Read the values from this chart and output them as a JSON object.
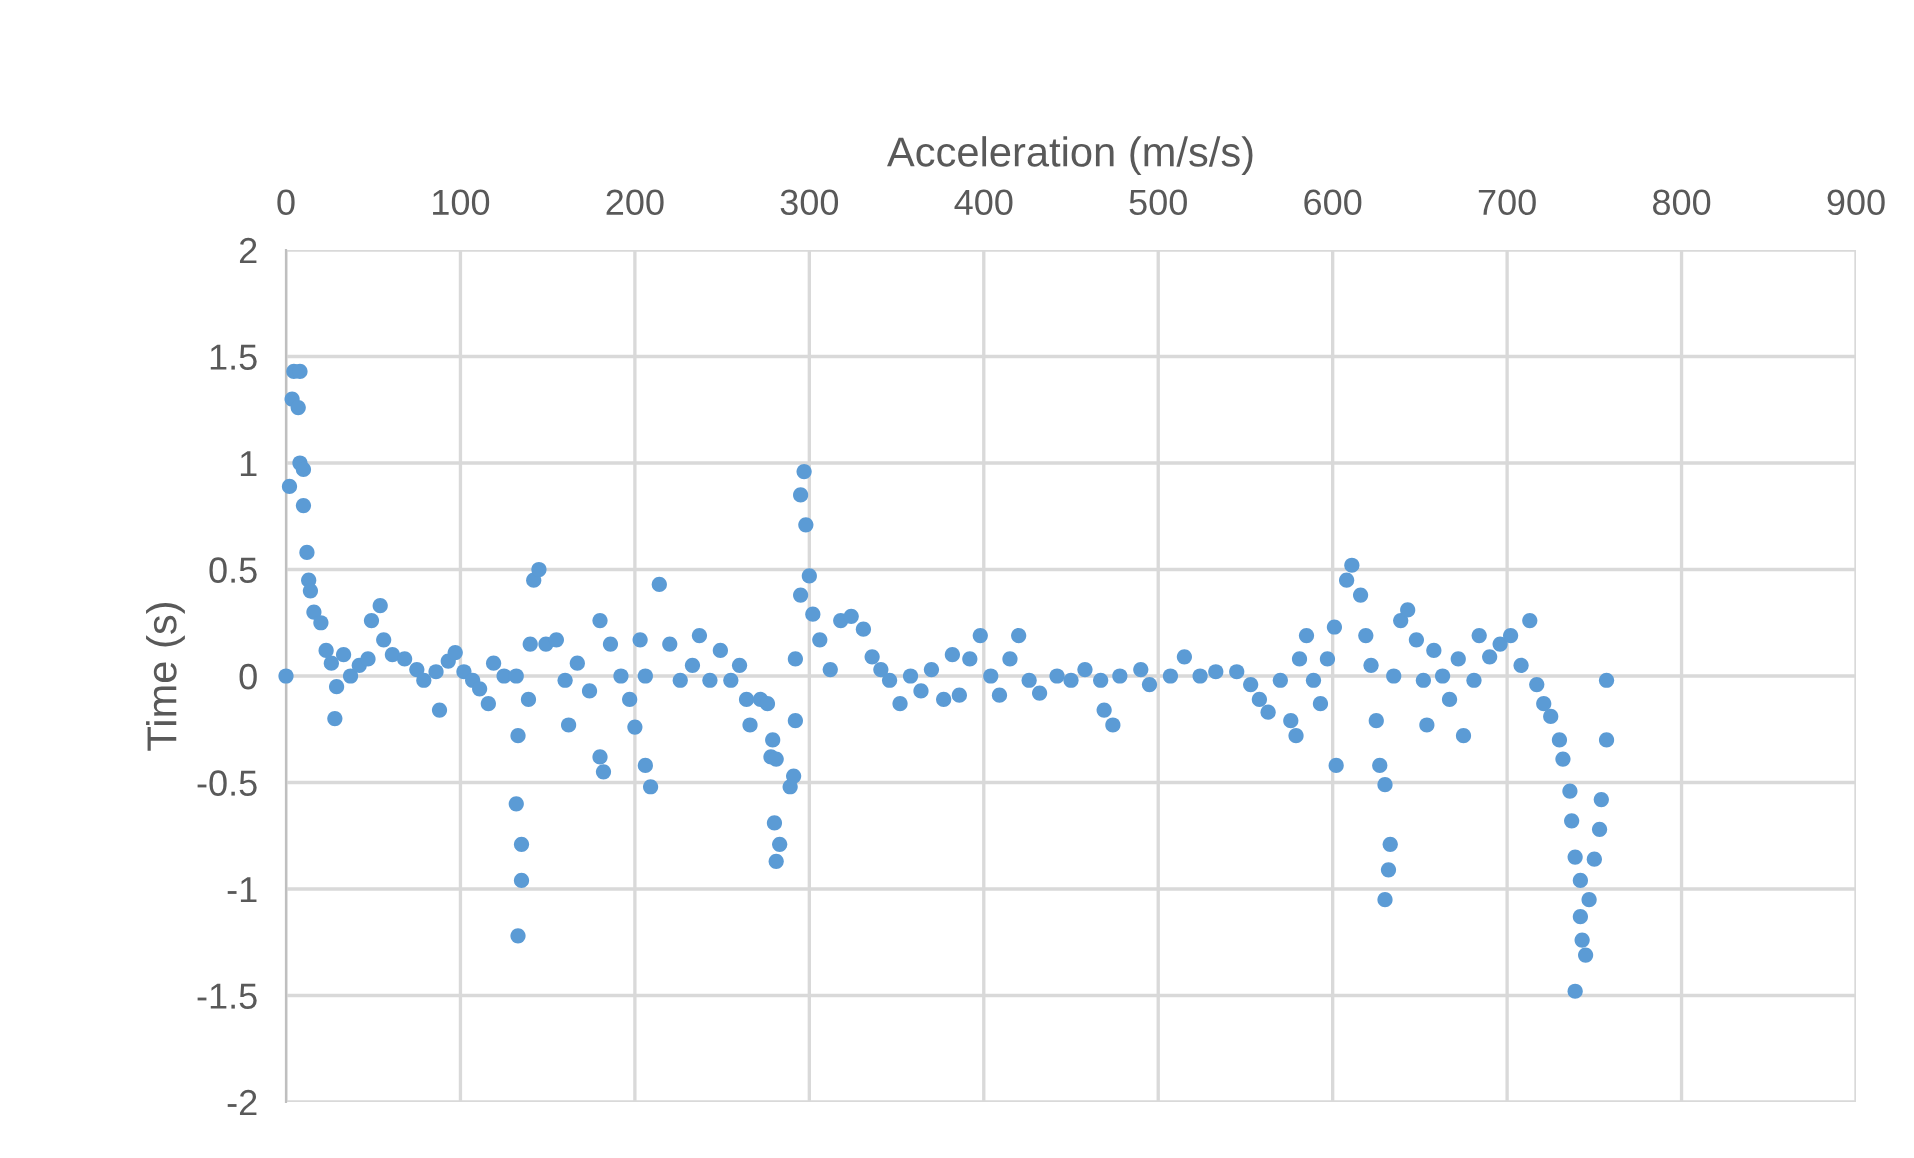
{
  "chart_data": {
    "type": "scatter",
    "xlabel": "Acceleration (m/s/s)",
    "ylabel": "Time (s)",
    "xlim": [
      0,
      900
    ],
    "xticks": [
      0,
      100,
      200,
      300,
      400,
      500,
      600,
      700,
      800,
      900
    ],
    "ylim": [
      -2,
      2
    ],
    "yticks": [
      -2,
      -1.5,
      -1,
      -0.5,
      0,
      0.5,
      1,
      1.5,
      2
    ],
    "grid": true,
    "marker": "circle",
    "series": [
      {
        "color": "#5b9bd5",
        "x": [
          0,
          2,
          3.5,
          4.5,
          8,
          7,
          8,
          10,
          10,
          12,
          13,
          14,
          16,
          20,
          23,
          26,
          29,
          28,
          33,
          37,
          42,
          47,
          49,
          54,
          56,
          61,
          68,
          75,
          79,
          86,
          88,
          93,
          97,
          102,
          107,
          111,
          116,
          119,
          125,
          132,
          133,
          132,
          135,
          135,
          133,
          139,
          140,
          142,
          145,
          149,
          155,
          160,
          162,
          167,
          174,
          180,
          180,
          182,
          186,
          192,
          197,
          200,
          203,
          206,
          209,
          214,
          206,
          220,
          226,
          233,
          237,
          243,
          249,
          255,
          260,
          264,
          266,
          272,
          276,
          279,
          278,
          281,
          280,
          283,
          281,
          289,
          291,
          292,
          292,
          295,
          295,
          297,
          298,
          300,
          302,
          306,
          312,
          318,
          324,
          331,
          336,
          341,
          346,
          352,
          358,
          364,
          370,
          377,
          382,
          386,
          392,
          398,
          404,
          409,
          415,
          420,
          426,
          432,
          442,
          450,
          458,
          467,
          469,
          474,
          478,
          490,
          495,
          507,
          515,
          524,
          533,
          545,
          553,
          558,
          563,
          570,
          576,
          579,
          581,
          585,
          589,
          593,
          597,
          601,
          602,
          608,
          611,
          616,
          619,
          622,
          625,
          627,
          630,
          633,
          632,
          630,
          635,
          639,
          643,
          648,
          652,
          654,
          658,
          663,
          667,
          672,
          675,
          681,
          684,
          690,
          696,
          702,
          708,
          713,
          717,
          721,
          725,
          730,
          732,
          736,
          737,
          739,
          742,
          742,
          743,
          739,
          745,
          747,
          750,
          753,
          754,
          757,
          757
        ],
        "values": [
          0,
          0.89,
          1.3,
          1.43,
          1.43,
          1.26,
          1.0,
          0.97,
          0.8,
          0.58,
          0.45,
          0.4,
          0.3,
          0.25,
          0.12,
          0.06,
          -0.05,
          -0.2,
          0.1,
          0,
          0.05,
          0.08,
          0.26,
          0.33,
          0.17,
          0.1,
          0.08,
          0.03,
          -0.02,
          0.02,
          -0.16,
          0.07,
          0.11,
          0.02,
          -0.02,
          -0.06,
          -0.13,
          0.06,
          0,
          0,
          -0.28,
          -0.6,
          -0.79,
          -0.96,
          -1.22,
          -0.11,
          0.15,
          0.45,
          0.5,
          0.15,
          0.17,
          -0.02,
          -0.23,
          0.06,
          -0.07,
          0.26,
          -0.38,
          -0.45,
          0.15,
          0,
          -0.11,
          -0.24,
          0.17,
          0,
          -0.52,
          0.43,
          -0.42,
          0.15,
          -0.02,
          0.05,
          0.19,
          -0.02,
          0.12,
          -0.02,
          0.05,
          -0.11,
          -0.23,
          -0.11,
          -0.13,
          -0.3,
          -0.38,
          -0.39,
          -0.69,
          -0.79,
          -0.87,
          -0.52,
          -0.47,
          -0.21,
          0.08,
          0.38,
          0.85,
          0.96,
          0.71,
          0.47,
          0.29,
          0.17,
          0.03,
          0.26,
          0.28,
          0.22,
          0.09,
          0.03,
          -0.02,
          -0.13,
          0,
          -0.07,
          0.03,
          -0.11,
          0.1,
          -0.09,
          0.08,
          0.19,
          0,
          -0.09,
          0.08,
          0.19,
          -0.02,
          -0.08,
          0,
          -0.02,
          0.03,
          -0.02,
          -0.16,
          -0.23,
          0,
          0.03,
          -0.04,
          0,
          0.09,
          0,
          0.02,
          0.02,
          -0.04,
          -0.11,
          -0.17,
          -0.02,
          -0.21,
          -0.28,
          0.08,
          0.19,
          -0.02,
          -0.13,
          0.08,
          0.23,
          -0.42,
          0.45,
          0.52,
          0.38,
          0.19,
          0.05,
          -0.21,
          -0.42,
          -0.51,
          -0.79,
          -0.91,
          -1.05,
          0,
          0.26,
          0.31,
          0.17,
          -0.02,
          -0.23,
          0.12,
          0,
          -0.11,
          0.08,
          -0.28,
          -0.02,
          0.19,
          0.09,
          0.15,
          0.19,
          0.05,
          0.26,
          -0.04,
          -0.13,
          -0.19,
          -0.3,
          -0.39,
          -0.54,
          -0.68,
          -0.85,
          -0.96,
          -1.13,
          -1.24,
          -1.48,
          -1.31,
          -1.05,
          -0.86,
          -0.72,
          -0.58,
          -0.3,
          -0.02
        ]
      }
    ]
  }
}
